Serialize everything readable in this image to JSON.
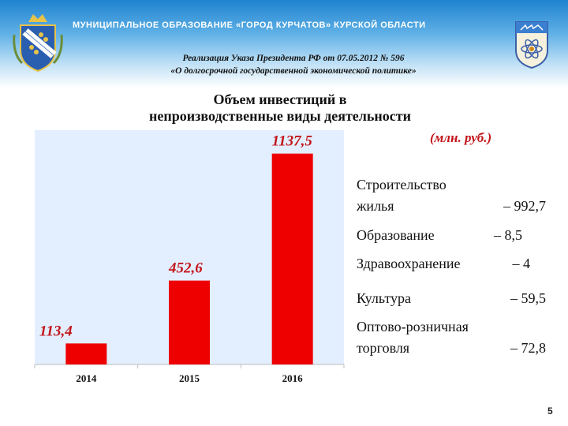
{
  "header": {
    "title": "МУНИЦИПАЛЬНОЕ  ОБРАЗОВАНИЕ  «ГОРОД КУРЧАТОВ»  КУРСКОЙ  ОБЛАСТИ",
    "subtitle_line1": "Реализация Указа Президента РФ от 07.05.2012 № 596",
    "subtitle_line2": "«О долгосрочной государственной экономической политике»"
  },
  "chart_data": {
    "type": "bar",
    "title_line1": "Объем инвестиций в",
    "title_line2": "непроизводственные виды деятельности",
    "units": "(млн. руб.)",
    "categories": [
      "2014",
      "2015",
      "2016"
    ],
    "values": [
      113.4,
      452.6,
      1137.5
    ],
    "value_labels": [
      "113,4",
      "452,6",
      "1137,5"
    ],
    "ylim": [
      0,
      1200
    ],
    "grid": false,
    "bar_color": "#ee0000",
    "label_color": "#c3141a",
    "plot_background": "#e3efff"
  },
  "legend": {
    "items": [
      {
        "line1": "Строительство",
        "line2": "жилья",
        "value": "– 992,7"
      },
      {
        "line1": "Образование",
        "line2": "",
        "value": "– 8,5"
      },
      {
        "line1": "Здравоохранение",
        "line2": "",
        "value": "– 4"
      },
      {
        "line1": "Культура",
        "line2": "",
        "value": "– 59,5"
      },
      {
        "line1": "Оптово-розничная",
        "line2": "торговля",
        "value": "– 72,8"
      }
    ]
  },
  "page_number": "5",
  "colors": {
    "header_top": "#1f83cf",
    "accent_red": "#c3141a"
  }
}
